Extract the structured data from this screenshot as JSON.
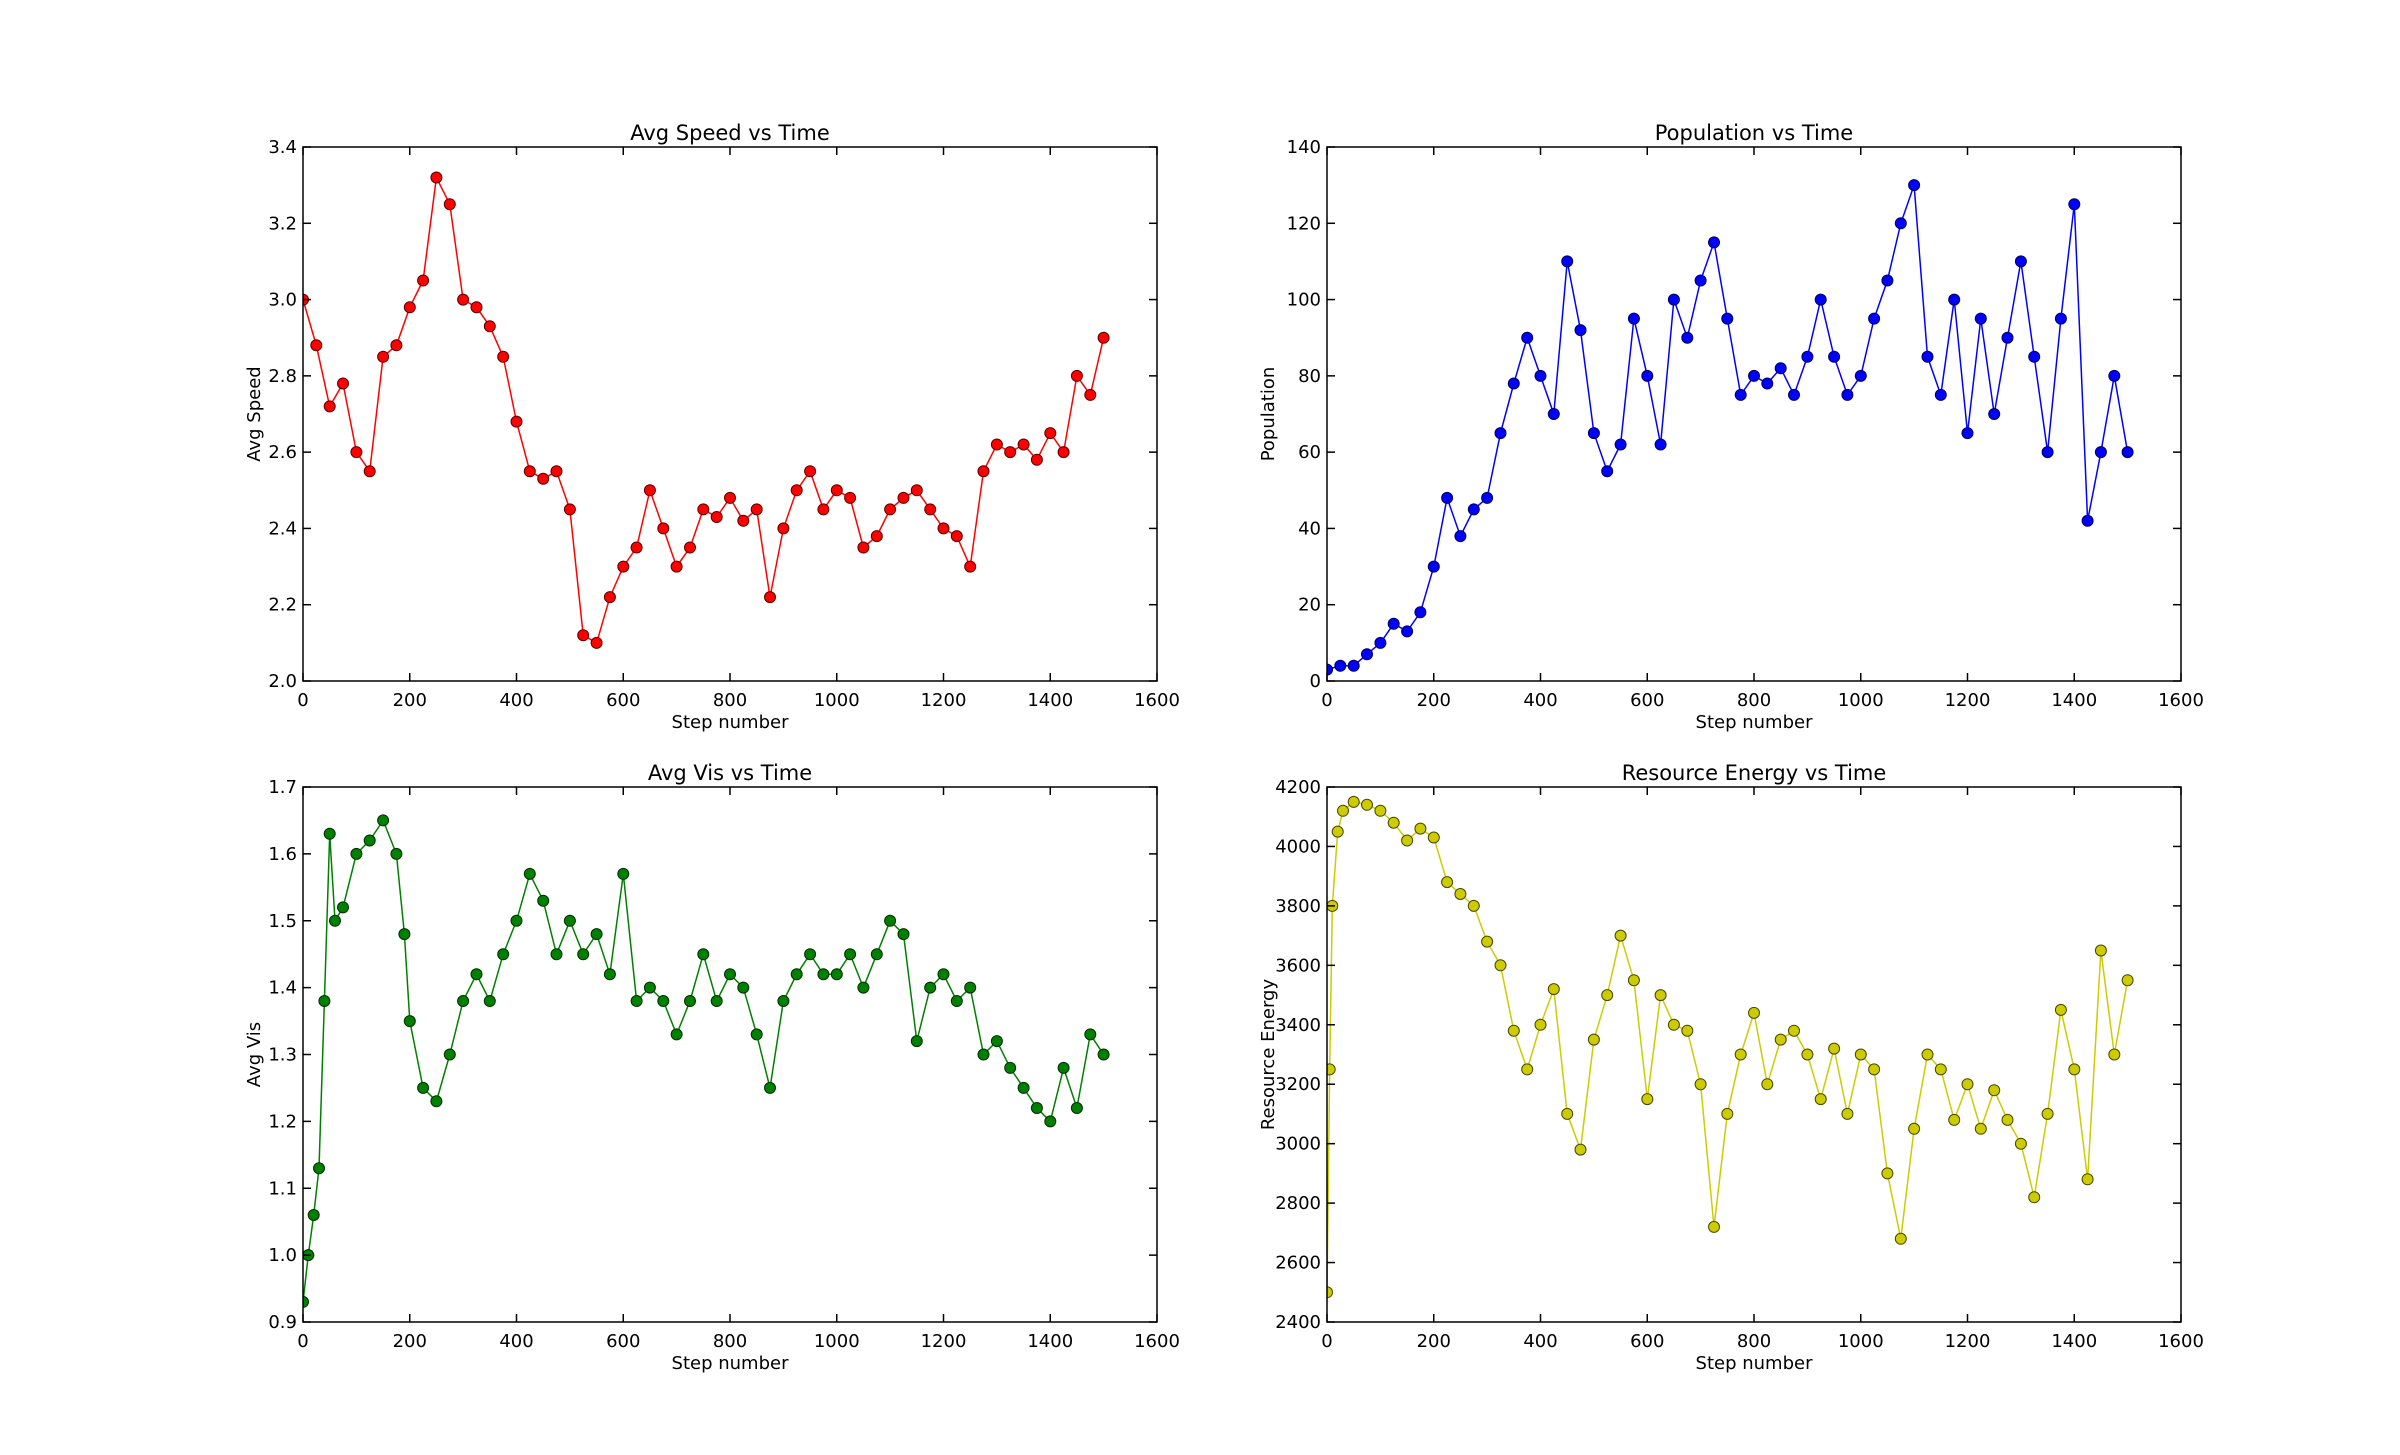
{
  "chart_data": [
    {
      "type": "line",
      "title": "Avg Speed vs Time",
      "xlabel": "Step number",
      "ylabel": "Avg Speed",
      "xlim": [
        0,
        1600
      ],
      "ylim": [
        2.0,
        3.4
      ],
      "xticks": [
        "0",
        "200",
        "400",
        "600",
        "800",
        "1000",
        "1200",
        "1400",
        "1600"
      ],
      "yticks": [
        "2.0",
        "2.2",
        "2.4",
        "2.6",
        "2.8",
        "3.0",
        "3.2",
        "3.4"
      ],
      "color": "#ff0000",
      "marker": "circle",
      "x": [
        0,
        25,
        50,
        75,
        100,
        125,
        150,
        175,
        200,
        225,
        250,
        275,
        300,
        325,
        350,
        375,
        400,
        425,
        450,
        475,
        500,
        525,
        550,
        575,
        600,
        625,
        650,
        675,
        700,
        725,
        750,
        775,
        800,
        825,
        850,
        875,
        900,
        925,
        950,
        975,
        1000,
        1025,
        1050,
        1075,
        1100,
        1125,
        1150,
        1175,
        1200,
        1225,
        1250,
        1275,
        1300,
        1325,
        1350,
        1375,
        1400,
        1425,
        1450,
        1475,
        1500
      ],
      "y": [
        3.0,
        2.88,
        2.72,
        2.78,
        2.6,
        2.55,
        2.85,
        2.88,
        2.98,
        3.05,
        3.32,
        3.25,
        3.0,
        2.98,
        2.93,
        2.85,
        2.68,
        2.55,
        2.53,
        2.55,
        2.45,
        2.12,
        2.1,
        2.22,
        2.3,
        2.35,
        2.5,
        2.4,
        2.3,
        2.35,
        2.45,
        2.43,
        2.48,
        2.42,
        2.45,
        2.22,
        2.4,
        2.5,
        2.55,
        2.45,
        2.5,
        2.48,
        2.35,
        2.38,
        2.45,
        2.48,
        2.5,
        2.45,
        2.4,
        2.38,
        2.3,
        2.55,
        2.62,
        2.6,
        2.62,
        2.58,
        2.65,
        2.6,
        2.8,
        2.75,
        2.9
      ]
    },
    {
      "type": "line",
      "title": "Population vs Time",
      "xlabel": "Step number",
      "ylabel": "Population",
      "xlim": [
        0,
        1600
      ],
      "ylim": [
        0,
        140
      ],
      "xticks": [
        "0",
        "200",
        "400",
        "600",
        "800",
        "1000",
        "1200",
        "1400",
        "1600"
      ],
      "yticks": [
        "0",
        "20",
        "40",
        "60",
        "80",
        "100",
        "120",
        "140"
      ],
      "color": "#0000ff",
      "marker": "circle",
      "x": [
        0,
        25,
        50,
        75,
        100,
        125,
        150,
        175,
        200,
        225,
        250,
        275,
        300,
        325,
        350,
        375,
        400,
        425,
        450,
        475,
        500,
        525,
        550,
        575,
        600,
        625,
        650,
        675,
        700,
        725,
        750,
        775,
        800,
        825,
        850,
        875,
        900,
        925,
        950,
        975,
        1000,
        1025,
        1050,
        1075,
        1100,
        1125,
        1150,
        1175,
        1200,
        1225,
        1250,
        1275,
        1300,
        1325,
        1350,
        1375,
        1400,
        1425,
        1450,
        1475,
        1500
      ],
      "y": [
        3,
        4,
        4,
        7,
        10,
        15,
        13,
        18,
        30,
        48,
        38,
        45,
        48,
        65,
        78,
        90,
        80,
        70,
        110,
        92,
        65,
        55,
        62,
        95,
        80,
        62,
        100,
        90,
        105,
        115,
        95,
        75,
        80,
        78,
        82,
        75,
        85,
        100,
        85,
        75,
        80,
        95,
        105,
        120,
        130,
        85,
        75,
        100,
        65,
        95,
        70,
        90,
        110,
        85,
        60,
        95,
        125,
        42,
        60,
        80,
        60
      ]
    },
    {
      "type": "line",
      "title": "Avg Vis vs Time",
      "xlabel": "Step number",
      "ylabel": "Avg Vis",
      "xlim": [
        0,
        1600
      ],
      "ylim": [
        0.9,
        1.7
      ],
      "xticks": [
        "0",
        "200",
        "400",
        "600",
        "800",
        "1000",
        "1200",
        "1400",
        "1600"
      ],
      "yticks": [
        "0.9",
        "1.0",
        "1.1",
        "1.2",
        "1.3",
        "1.4",
        "1.5",
        "1.6",
        "1.7"
      ],
      "color": "#008000",
      "marker": "circle",
      "x": [
        0,
        10,
        20,
        30,
        40,
        50,
        60,
        75,
        100,
        125,
        150,
        175,
        190,
        200,
        225,
        250,
        275,
        300,
        325,
        350,
        375,
        400,
        425,
        450,
        475,
        500,
        525,
        550,
        575,
        600,
        625,
        650,
        675,
        700,
        725,
        750,
        775,
        800,
        825,
        850,
        875,
        900,
        925,
        950,
        975,
        1000,
        1025,
        1050,
        1075,
        1100,
        1125,
        1150,
        1175,
        1200,
        1225,
        1250,
        1275,
        1300,
        1325,
        1350,
        1375,
        1400,
        1425,
        1450,
        1475,
        1500
      ],
      "y": [
        0.93,
        1.0,
        1.06,
        1.13,
        1.38,
        1.63,
        1.5,
        1.52,
        1.6,
        1.62,
        1.65,
        1.6,
        1.48,
        1.35,
        1.25,
        1.23,
        1.3,
        1.38,
        1.42,
        1.38,
        1.45,
        1.5,
        1.57,
        1.53,
        1.45,
        1.5,
        1.45,
        1.48,
        1.42,
        1.57,
        1.38,
        1.4,
        1.38,
        1.33,
        1.38,
        1.45,
        1.38,
        1.42,
        1.4,
        1.33,
        1.25,
        1.38,
        1.42,
        1.45,
        1.42,
        1.42,
        1.45,
        1.4,
        1.45,
        1.5,
        1.48,
        1.32,
        1.4,
        1.42,
        1.38,
        1.4,
        1.3,
        1.32,
        1.28,
        1.25,
        1.22,
        1.2,
        1.28,
        1.22,
        1.33,
        1.3
      ]
    },
    {
      "type": "line",
      "title": "Resource Energy vs Time",
      "xlabel": "Step number",
      "ylabel": "Resource Energy",
      "xlim": [
        0,
        1600
      ],
      "ylim": [
        2400,
        4200
      ],
      "xticks": [
        "0",
        "200",
        "400",
        "600",
        "800",
        "1000",
        "1200",
        "1400",
        "1600"
      ],
      "yticks": [
        "2400",
        "2600",
        "2800",
        "3000",
        "3200",
        "3400",
        "3600",
        "3800",
        "4000",
        "4200"
      ],
      "color": "#cccc00",
      "marker": "circle",
      "x": [
        0,
        5,
        10,
        20,
        30,
        50,
        75,
        100,
        125,
        150,
        175,
        200,
        225,
        250,
        275,
        300,
        325,
        350,
        375,
        400,
        425,
        450,
        475,
        500,
        525,
        550,
        575,
        600,
        625,
        650,
        675,
        700,
        725,
        750,
        775,
        800,
        825,
        850,
        875,
        900,
        925,
        950,
        975,
        1000,
        1025,
        1050,
        1075,
        1100,
        1125,
        1150,
        1175,
        1200,
        1225,
        1250,
        1275,
        1300,
        1325,
        1350,
        1375,
        1400,
        1425,
        1450,
        1475,
        1500
      ],
      "y": [
        2500,
        3250,
        3800,
        4050,
        4120,
        4150,
        4140,
        4120,
        4080,
        4020,
        4060,
        4030,
        3880,
        3840,
        3800,
        3680,
        3600,
        3380,
        3250,
        3400,
        3520,
        3100,
        2980,
        3350,
        3500,
        3700,
        3550,
        3150,
        3500,
        3400,
        3380,
        3200,
        2720,
        3100,
        3300,
        3440,
        3200,
        3350,
        3380,
        3300,
        3150,
        3320,
        3100,
        3300,
        3250,
        2900,
        2680,
        3050,
        3300,
        3250,
        3080,
        3200,
        3050,
        3180,
        3080,
        3000,
        2820,
        3100,
        3450,
        3250,
        2880,
        3650,
        3300,
        3550
      ]
    }
  ]
}
